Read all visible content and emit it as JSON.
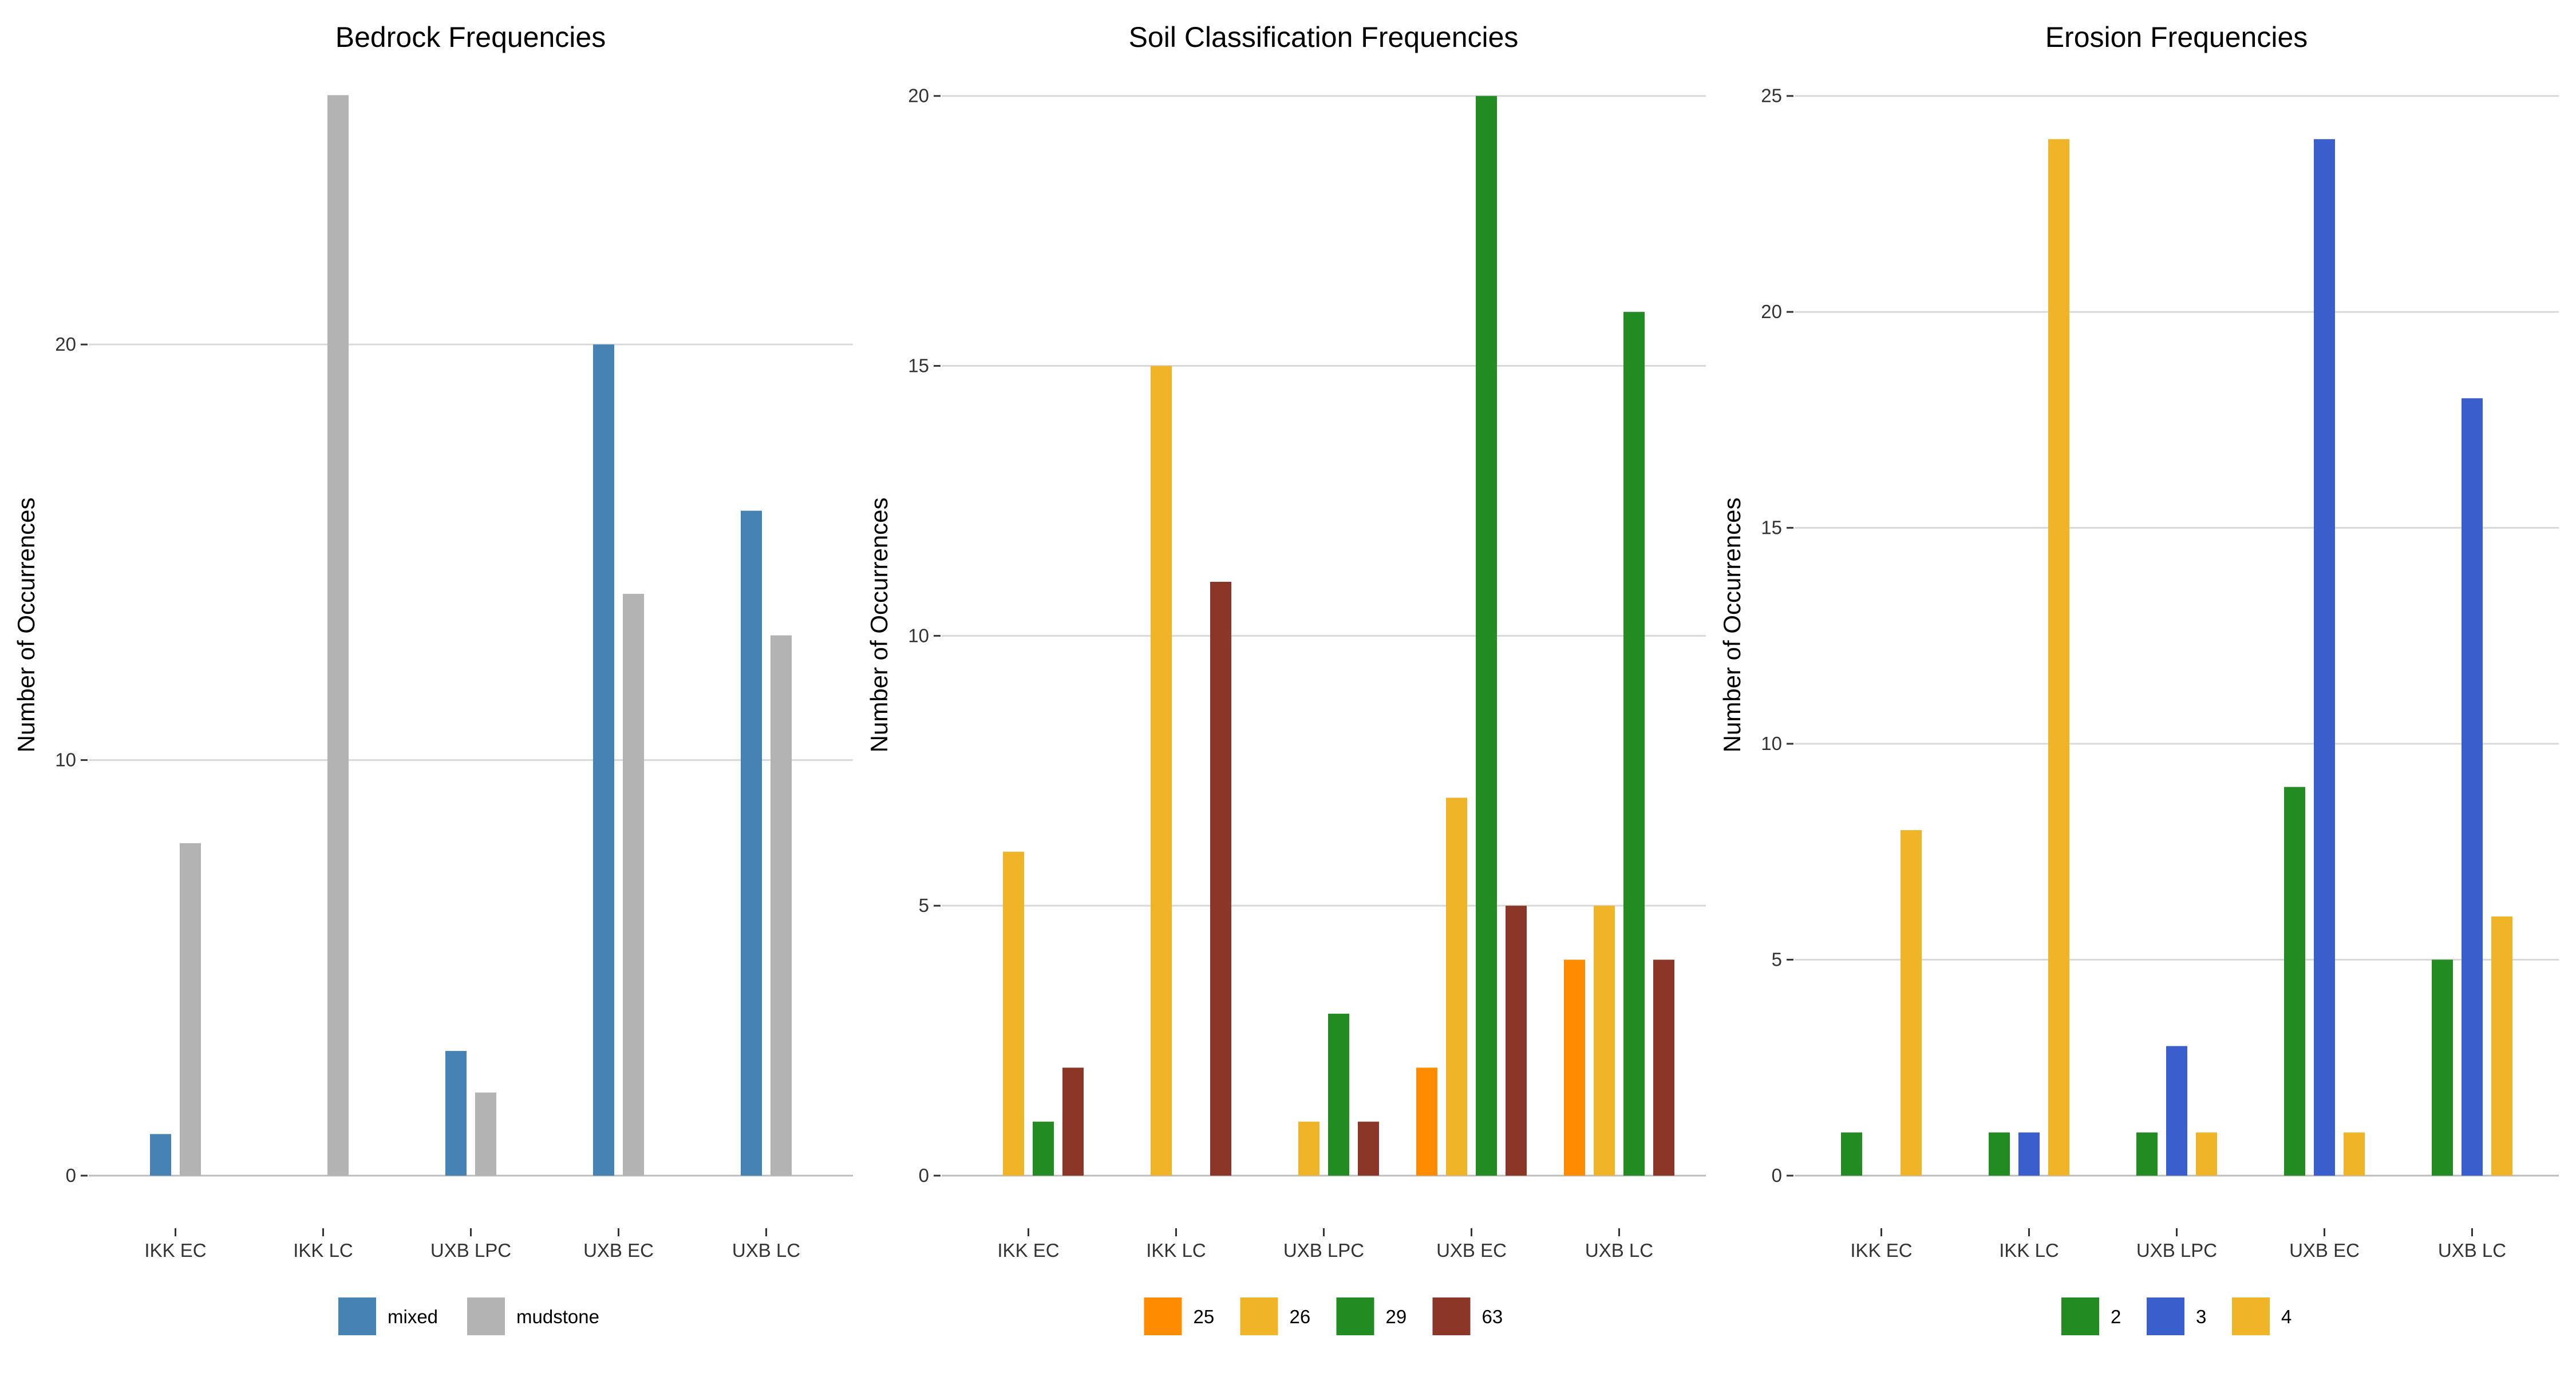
{
  "chart_data": [
    {
      "type": "bar",
      "title": "Bedrock Frequencies",
      "xlabel": "",
      "ylabel": "Number of Occurrences",
      "ylim": [
        0,
        26.5
      ],
      "yticks": [
        0,
        10,
        20
      ],
      "categories": [
        "IKK EC",
        "IKK LC",
        "UXB LPC",
        "UXB EC",
        "UXB LC"
      ],
      "series": [
        {
          "name": "mixed",
          "color": "#4682b4",
          "values": [
            1,
            0,
            3,
            20,
            16
          ]
        },
        {
          "name": "mudstone",
          "color": "#b3b3b3",
          "values": [
            8,
            26,
            2,
            14,
            13
          ]
        }
      ],
      "legend": "bottom",
      "grid": true
    },
    {
      "type": "bar",
      "title": "Soil Classification Frequencies",
      "xlabel": "",
      "ylabel": "Number of Occurrences",
      "ylim": [
        0,
        20.4
      ],
      "yticks": [
        0,
        5,
        10,
        15,
        20
      ],
      "categories": [
        "IKK EC",
        "IKK LC",
        "UXB LPC",
        "UXB EC",
        "UXB LC"
      ],
      "series": [
        {
          "name": "25",
          "color": "#ff8c00",
          "values": [
            0,
            0,
            0,
            2,
            4
          ]
        },
        {
          "name": "26",
          "color": "#f0b428",
          "values": [
            6,
            15,
            1,
            7,
            5
          ]
        },
        {
          "name": "29",
          "color": "#228b22",
          "values": [
            1,
            0,
            3,
            20,
            16
          ]
        },
        {
          "name": "63",
          "color": "#8b3626",
          "values": [
            2,
            11,
            1,
            5,
            4
          ]
        }
      ],
      "legend": "bottom",
      "grid": true
    },
    {
      "type": "bar",
      "title": "Erosion Frequencies",
      "xlabel": "",
      "ylabel": "Number of Occurrences",
      "ylim": [
        0,
        25.5
      ],
      "yticks": [
        0,
        5,
        10,
        15,
        20,
        25
      ],
      "categories": [
        "IKK EC",
        "IKK LC",
        "UXB LPC",
        "UXB EC",
        "UXB LC"
      ],
      "series": [
        {
          "name": "2",
          "color": "#228b22",
          "values": [
            1,
            1,
            1,
            9,
            5
          ]
        },
        {
          "name": "3",
          "color": "#3a5fcd",
          "values": [
            0,
            1,
            3,
            24,
            18
          ]
        },
        {
          "name": "4",
          "color": "#f0b428",
          "values": [
            8,
            24,
            1,
            1,
            6
          ]
        }
      ],
      "legend": "bottom",
      "grid": true
    }
  ]
}
